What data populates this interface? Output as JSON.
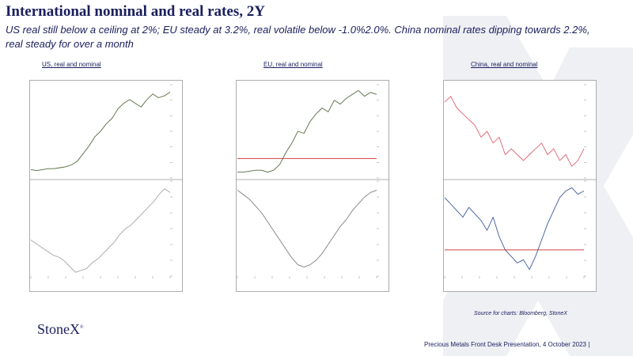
{
  "slide": {
    "title": "International nominal and real rates, 2Y",
    "subtitle": "US real still below a ceiling at 2%; EU steady at 3.2%, real volatile below -1.0%2.0%.  China nominal rates dipping towards 2.2%,  real steady for over a month",
    "source": "Source for charts: Bloomberg, StoneX",
    "logo": "StoneX",
    "footer": "Precious Metals Front Desk Presentation, 4 October 2023 |"
  },
  "colors": {
    "title": "#1a1f5c",
    "us_nominal": "#556b3f",
    "eu_nominal": "#556b3f",
    "china_nominal": "#e06070",
    "us_real": "#a6a6a6",
    "eu_real": "#7f7f7f",
    "china_real": "#3a5a99",
    "reference_line": "#d04040",
    "background_x": "#eef0f4"
  },
  "chart_data": [
    {
      "type": "line",
      "label": "US, real and nominal",
      "panels": [
        {
          "series": [
            {
              "name": "",
              "values": [
                0.95,
                0.9,
                0.95,
                1.0,
                1.0,
                1.05,
                1.1,
                1.2,
                1.4,
                1.8,
                2.2,
                2.7,
                3.0,
                3.4,
                3.7,
                4.2,
                4.5,
                4.7,
                4.5,
                4.3,
                4.7,
                5.0,
                4.8,
                4.9,
                5.1
              ]
            }
          ],
          "ylim": [
            0.5,
            5.5
          ],
          "reference": null
        },
        {
          "series": [
            {
              "name": "",
              "values": [
                -1.1,
                -1.3,
                -1.5,
                -1.7,
                -1.9,
                -2.0,
                -2.2,
                -2.5,
                -2.8,
                -2.7,
                -2.6,
                -2.3,
                -2.1,
                -1.8,
                -1.5,
                -1.2,
                -0.8,
                -0.5,
                -0.3,
                0.0,
                0.3,
                0.6,
                0.9,
                1.3,
                1.6,
                1.4
              ]
            }
          ],
          "ylim": [
            -3.0,
            2.0
          ],
          "reference": null
        }
      ]
    },
    {
      "type": "line",
      "label": "EU, real and nominal",
      "panels": [
        {
          "series": [
            {
              "name": "",
              "values": [
                -0.7,
                -0.7,
                -0.65,
                -0.6,
                -0.6,
                -0.7,
                -0.6,
                -0.3,
                0.3,
                0.8,
                1.4,
                1.3,
                1.9,
                2.3,
                2.6,
                2.4,
                3.0,
                2.8,
                3.1,
                3.3,
                3.5,
                3.2,
                3.4,
                3.3
              ]
            }
          ],
          "ylim": [
            -1.0,
            3.8
          ],
          "reference": 0.0
        },
        {
          "series": [
            {
              "name": "",
              "values": [
                -1.2,
                -1.4,
                -1.6,
                -1.9,
                -2.2,
                -2.6,
                -3.0,
                -3.4,
                -3.8,
                -4.2,
                -4.5,
                -4.6,
                -4.5,
                -4.3,
                -4.0,
                -3.6,
                -3.2,
                -2.8,
                -2.5,
                -2.1,
                -1.8,
                -1.5,
                -1.3,
                -1.2
              ]
            }
          ],
          "ylim": [
            -5.0,
            -0.8
          ],
          "reference": null
        }
      ]
    },
    {
      "type": "line",
      "label": "China, real and nominal",
      "panels": [
        {
          "series": [
            {
              "name": "",
              "values": [
                2.75,
                2.8,
                2.7,
                2.65,
                2.6,
                2.55,
                2.45,
                2.5,
                2.4,
                2.45,
                2.3,
                2.35,
                2.3,
                2.25,
                2.3,
                2.35,
                2.4,
                2.3,
                2.35,
                2.25,
                2.3,
                2.2,
                2.25,
                2.35
              ]
            }
          ],
          "ylim": [
            2.1,
            2.9
          ],
          "reference": null
        },
        {
          "series": [
            {
              "name": "",
              "values": [
                0.8,
                0.6,
                0.4,
                0.2,
                0.5,
                0.3,
                0.1,
                -0.2,
                0.2,
                -0.4,
                -0.8,
                -1.0,
                -1.2,
                -1.1,
                -1.4,
                -1.0,
                -0.5,
                0.0,
                0.4,
                0.8,
                1.0,
                1.1,
                0.9,
                1.0
              ]
            }
          ],
          "ylim": [
            -1.6,
            1.3
          ],
          "reference": -0.8
        }
      ]
    }
  ]
}
